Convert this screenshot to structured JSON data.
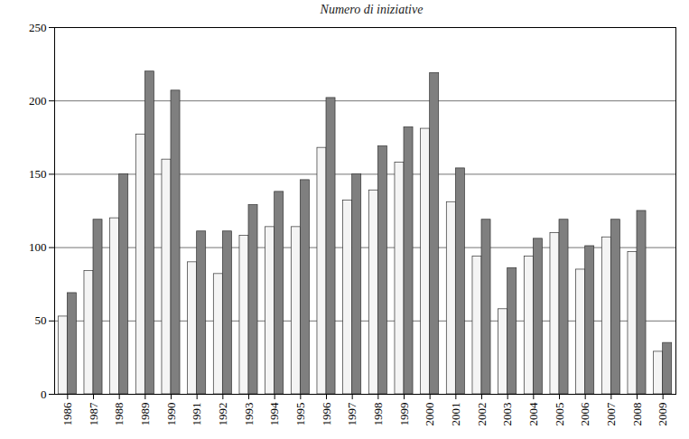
{
  "chart_data": {
    "type": "bar",
    "title": "Numero di iniziative",
    "categories": [
      "1986",
      "1987",
      "1988",
      "1989",
      "1990",
      "1991",
      "1992",
      "1993",
      "1994",
      "1995",
      "1996",
      "1997",
      "1998",
      "1999",
      "2000",
      "2001",
      "2002",
      "2003",
      "2004",
      "2005",
      "2006",
      "2007",
      "2008",
      "2009"
    ],
    "series": [
      {
        "color": "#f4f4f4",
        "values": [
          53,
          84,
          120,
          177,
          160,
          90,
          82,
          108,
          114,
          114,
          168,
          132,
          139,
          158,
          181,
          131,
          94,
          58,
          94,
          110,
          85,
          107,
          97,
          29
        ]
      },
      {
        "color": "#7f7f7f",
        "values": [
          69,
          119,
          150,
          220,
          207,
          111,
          111,
          129,
          138,
          146,
          202,
          150,
          169,
          182,
          219,
          154,
          119,
          86,
          106,
          119,
          101,
          119,
          125,
          35
        ]
      }
    ],
    "ylim": [
      0,
      250
    ],
    "yticks": [
      0,
      50,
      100,
      150,
      200,
      250
    ],
    "grid": true
  }
}
